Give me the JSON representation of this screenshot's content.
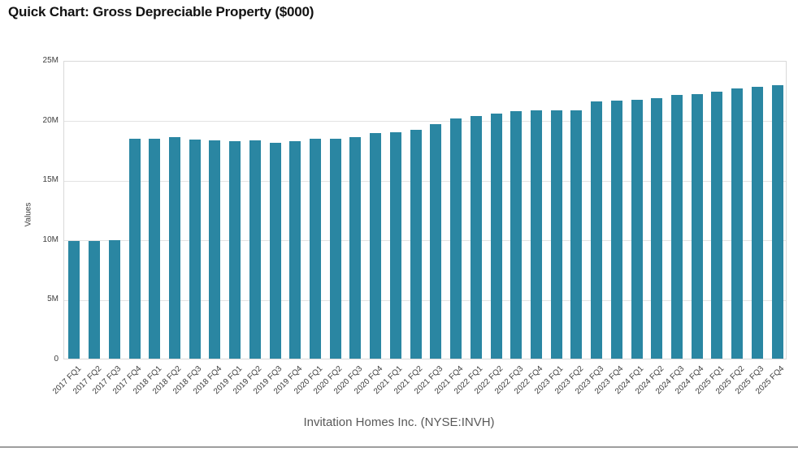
{
  "page": {
    "title": "Quick Chart: Gross Depreciable Property ($000)",
    "caption": "Invitation Homes Inc. (NYSE:INVH)"
  },
  "colors": {
    "bar": "#2a86a2",
    "grid": "#e3e3e3",
    "plot_border": "#d9d9d9",
    "title_text": "#121212",
    "axis_text": "#3d3d3d",
    "caption_text": "#595959",
    "divider": "#9e9e9e"
  },
  "chart_data": {
    "type": "bar",
    "title": "Quick Chart: Gross Depreciable Property ($000)",
    "subtitle": "Invitation Homes Inc. (NYSE:INVH)",
    "xlabel": "",
    "ylabel": "Values",
    "unit_note": "values are in millions of $000s, read from axis (ticks labelled 0–25M)",
    "ylim": [
      0,
      25
    ],
    "grid": true,
    "legend": false,
    "yticks": [
      {
        "value": 0,
        "label": "0"
      },
      {
        "value": 5,
        "label": "5M"
      },
      {
        "value": 10,
        "label": "10M"
      },
      {
        "value": 15,
        "label": "15M"
      },
      {
        "value": 20,
        "label": "20M"
      },
      {
        "value": 25,
        "label": "25M"
      }
    ],
    "categories": [
      "2017 FQ1",
      "2017 FQ2",
      "2017 FQ3",
      "2017 FQ4",
      "2018 FQ1",
      "2018 FQ2",
      "2018 FQ3",
      "2018 FQ4",
      "2019 FQ1",
      "2019 FQ2",
      "2019 FQ3",
      "2019 FQ4",
      "2020 FQ1",
      "2020 FQ2",
      "2020 FQ3",
      "2020 FQ4",
      "2021 FQ1",
      "2021 FQ2",
      "2021 FQ3",
      "2021 FQ4",
      "2022 FQ1",
      "2022 FQ2",
      "2022 FQ3",
      "2022 FQ4",
      "2023 FQ1",
      "2023 FQ2",
      "2023 FQ3",
      "2023 FQ4",
      "2024 FQ1",
      "2024 FQ2",
      "2024 FQ3",
      "2024 FQ4",
      "2025 FQ1",
      "2025 FQ2",
      "2025 FQ3",
      "2025 FQ4"
    ],
    "values": [
      9.83,
      9.82,
      9.91,
      18.42,
      18.44,
      18.55,
      18.31,
      18.28,
      18.19,
      18.28,
      18.1,
      18.24,
      18.4,
      18.41,
      18.55,
      18.86,
      18.97,
      19.16,
      19.63,
      20.1,
      20.31,
      20.55,
      20.7,
      20.78,
      20.79,
      20.77,
      21.54,
      21.63,
      21.7,
      21.83,
      22.08,
      22.17,
      22.35,
      22.62,
      22.78,
      22.87
    ]
  }
}
